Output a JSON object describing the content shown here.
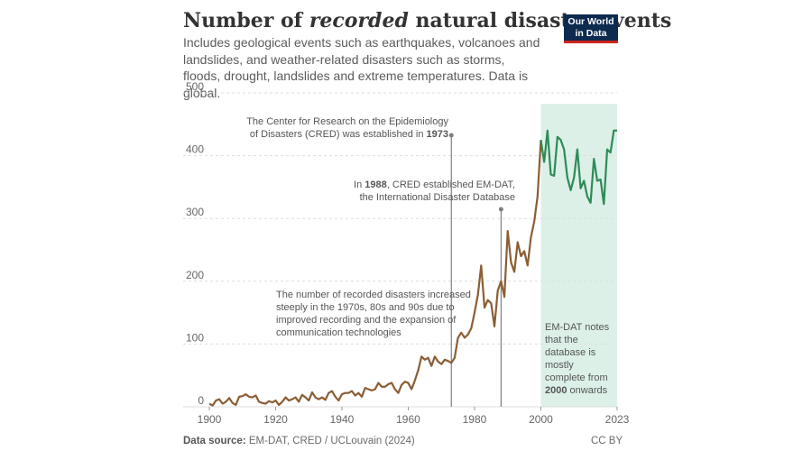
{
  "header": {
    "title_prefix": "Number of ",
    "title_emph": "recorded",
    "title_suffix": " natural disaster events",
    "subtitle": "Includes geological events such as earthquakes, volcanoes and landslides, and weather-related disasters such as storms, floods, drought, landslides and extreme temperatures. Data is global."
  },
  "logo": {
    "line1": "Our World",
    "line2": "in Data"
  },
  "footer": {
    "source_label": "Data source:",
    "source_text": " EM-DAT, CRED / UCLouvain (2024)",
    "license": "CC BY"
  },
  "colors": {
    "line_pre": "#8b5e34",
    "line_post": "#2e8b57",
    "highlight": "#dcf0e8",
    "annotation_line": "#808080",
    "grid": "#dddddd"
  },
  "chart_data": {
    "type": "line",
    "title": "Number of recorded natural disaster events",
    "xlabel": "",
    "ylabel": "",
    "xlim": [
      1900,
      2023
    ],
    "ylim": [
      0,
      500
    ],
    "y_ticks": [
      0,
      100,
      200,
      300,
      400,
      500
    ],
    "x_ticks": [
      1900,
      1920,
      1940,
      1960,
      1980,
      2000,
      2023
    ],
    "x_tick_labels": [
      "1900",
      "1920",
      "1940",
      "1960",
      "1980",
      "2000",
      "2023"
    ],
    "grid": "horizontal dashed",
    "highlight_range": [
      2000,
      2023
    ],
    "series": [
      {
        "name": "",
        "x": [
          1900,
          1901,
          1902,
          1903,
          1904,
          1905,
          1906,
          1907,
          1908,
          1909,
          1910,
          1911,
          1912,
          1913,
          1914,
          1915,
          1916,
          1917,
          1918,
          1919,
          1920,
          1921,
          1922,
          1923,
          1924,
          1925,
          1926,
          1927,
          1928,
          1929,
          1930,
          1931,
          1932,
          1933,
          1934,
          1935,
          1936,
          1937,
          1938,
          1939,
          1940,
          1941,
          1942,
          1943,
          1944,
          1945,
          1946,
          1947,
          1948,
          1949,
          1950,
          1951,
          1952,
          1953,
          1954,
          1955,
          1956,
          1957,
          1958,
          1959,
          1960,
          1961,
          1962,
          1963,
          1964,
          1965,
          1966,
          1967,
          1968,
          1969,
          1970,
          1971,
          1972,
          1973,
          1974,
          1975,
          1976,
          1977,
          1978,
          1979,
          1980,
          1981,
          1982,
          1983,
          1984,
          1985,
          1986,
          1987,
          1988,
          1989,
          1990,
          1991,
          1992,
          1993,
          1994,
          1995,
          1996,
          1997,
          1998,
          1999,
          2000,
          2001,
          2002,
          2003,
          2004,
          2005,
          2006,
          2007,
          2008,
          2009,
          2010,
          2011,
          2012,
          2013,
          2014,
          2015,
          2016,
          2017,
          2018,
          2019,
          2020,
          2021,
          2022,
          2023
        ],
        "y": [
          5,
          2,
          10,
          12,
          5,
          8,
          14,
          6,
          3,
          16,
          17,
          20,
          16,
          15,
          18,
          8,
          6,
          5,
          9,
          7,
          10,
          3,
          8,
          15,
          10,
          12,
          15,
          8,
          19,
          15,
          10,
          23,
          15,
          12,
          15,
          11,
          22,
          25,
          16,
          10,
          20,
          22,
          22,
          25,
          18,
          22,
          16,
          30,
          28,
          26,
          28,
          38,
          32,
          32,
          36,
          38,
          28,
          22,
          35,
          40,
          38,
          28,
          42,
          58,
          80,
          75,
          78,
          65,
          80,
          72,
          68,
          75,
          73,
          70,
          78,
          110,
          118,
          110,
          115,
          125,
          150,
          178,
          225,
          158,
          170,
          165,
          128,
          185,
          200,
          175,
          280,
          230,
          215,
          262,
          240,
          248,
          225,
          270,
          295,
          335,
          425,
          390,
          440,
          370,
          368,
          430,
          425,
          410,
          365,
          345,
          365,
          410,
          348,
          360,
          335,
          325,
          395,
          360,
          362,
          323,
          410,
          405,
          440,
          440
        ]
      }
    ],
    "annotations": [
      {
        "x": 1973,
        "text_lines": [
          "The Center for Research on the Epidemiology",
          "of Disasters (CRED) was established in 1973"
        ],
        "bold_suffix": "1973"
      },
      {
        "x": 1988,
        "text_lines": [
          "In 1988, CRED established EM-DAT,",
          "the International Disaster Database"
        ],
        "bold_prefix": "1988"
      },
      {
        "text_lines": [
          "The number of recorded disasters increased",
          "steeply in the 1970s, 80s and 90s due to",
          "improved recording and the expansion of",
          "communication technologies"
        ]
      },
      {
        "text_lines": [
          "EM-DAT notes",
          "that the",
          "database is",
          "mostly",
          "complete from",
          "2000 onwards"
        ]
      }
    ]
  }
}
